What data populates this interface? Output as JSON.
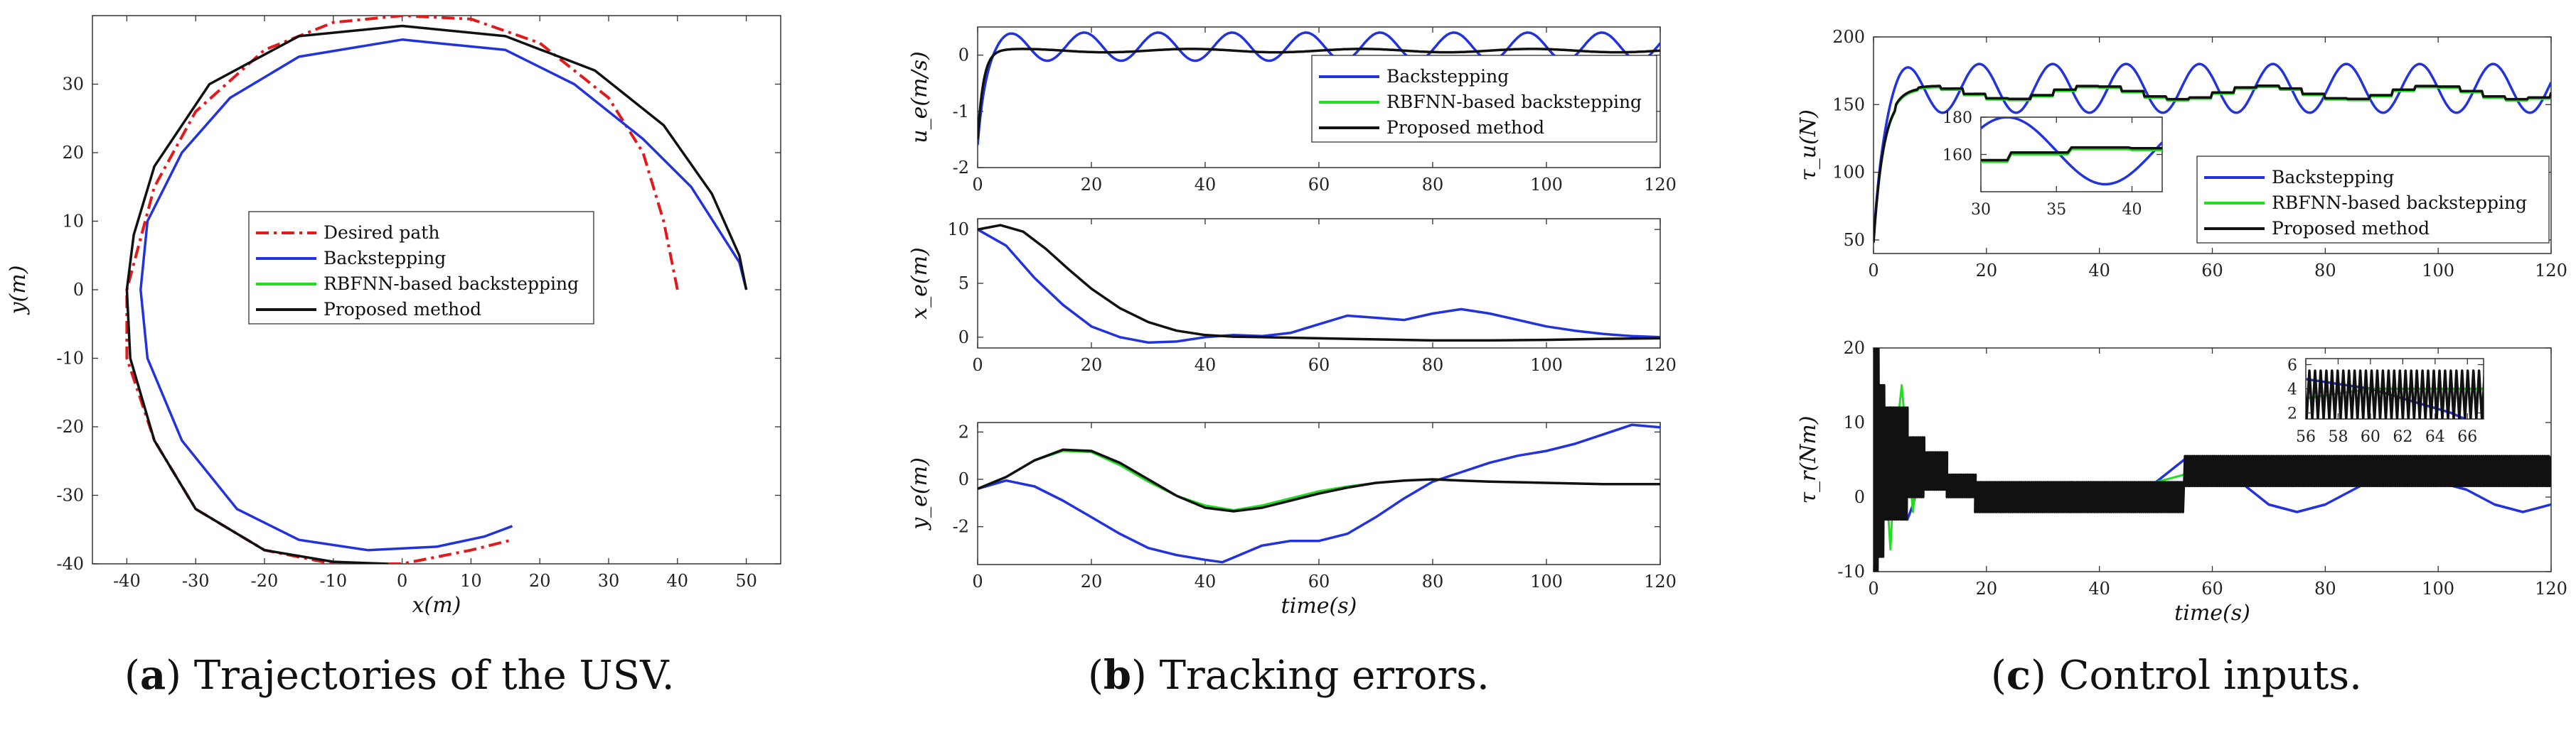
{
  "colors": {
    "desired": "#e31a1c",
    "back": "#2233dd",
    "rbf": "#22dd22",
    "prop": "#111111"
  },
  "captions": [
    {
      "label": "a",
      "text": "Trajectories of the USV."
    },
    {
      "label": "b",
      "text": "Tracking errors."
    },
    {
      "label": "c",
      "text": "Control inputs."
    }
  ],
  "chart_data": [
    {
      "id": "a",
      "type": "line",
      "title": "",
      "xlabel": "x(m)",
      "ylabel": "y(m)",
      "xlim": [
        -45,
        55
      ],
      "ylim": [
        -40,
        40
      ],
      "xticks": [
        -40,
        -30,
        -20,
        -10,
        0,
        10,
        20,
        30,
        40,
        50
      ],
      "yticks": [
        -40,
        -30,
        -20,
        -10,
        0,
        10,
        20,
        30
      ],
      "legend": {
        "position": "center",
        "entries": [
          "Desired path",
          "Backstepping",
          "RBFNN-based backstepping",
          "Proposed method"
        ]
      },
      "series": [
        {
          "name": "Desired path",
          "style": "dashdot",
          "key": "desired",
          "x": [
            40,
            38,
            35,
            30,
            20,
            10,
            0,
            -10,
            -20,
            -30,
            -36,
            -40,
            -40,
            -36,
            -30,
            -20,
            -10,
            0,
            10,
            16
          ],
          "y": [
            0,
            10,
            20,
            28,
            36,
            39.5,
            40,
            39,
            35,
            26,
            15,
            0,
            -10,
            -22,
            -32,
            -38,
            -40,
            -40,
            -38,
            -36.5
          ]
        },
        {
          "name": "Backstepping",
          "style": "solid",
          "key": "back",
          "x": [
            50,
            49,
            42,
            35,
            25,
            15,
            0,
            -15,
            -25,
            -32,
            -37,
            -38,
            -37,
            -32,
            -24,
            -15,
            -5,
            5,
            12,
            16
          ],
          "y": [
            0,
            4,
            15,
            22,
            30,
            35,
            36.5,
            34,
            28,
            20,
            10,
            0,
            -10,
            -22,
            -32,
            -36.5,
            -38,
            -37.5,
            -36,
            -34.5
          ]
        },
        {
          "name": "RBFNN-based backstepping",
          "style": "solid",
          "key": "rbf",
          "x": [
            50,
            49,
            45,
            38,
            28,
            15,
            0,
            -15,
            -28,
            -36,
            -39,
            -40,
            -39.5,
            -36,
            -30,
            -20,
            -10,
            -2
          ],
          "y": [
            0,
            5,
            14,
            24,
            32,
            37,
            38.5,
            37,
            30,
            18,
            8,
            0,
            -10,
            -22,
            -32,
            -38,
            -39.7,
            -40
          ]
        },
        {
          "name": "Proposed method",
          "style": "solid",
          "key": "prop",
          "x": [
            50,
            49,
            45,
            38,
            28,
            15,
            0,
            -15,
            -28,
            -36,
            -39,
            -40,
            -39.5,
            -36,
            -30,
            -20,
            -10,
            -2
          ],
          "y": [
            0,
            5,
            14,
            24,
            32,
            37,
            38.5,
            37,
            30,
            18,
            8,
            0,
            -10,
            -22,
            -32,
            -38,
            -39.7,
            -40
          ]
        }
      ]
    },
    {
      "id": "b1",
      "type": "line",
      "xlabel": "",
      "ylabel": "u_e(m/s)",
      "xlim": [
        0,
        120
      ],
      "ylim": [
        -2,
        0.5
      ],
      "xticks": [
        0,
        20,
        40,
        60,
        80,
        100,
        120
      ],
      "yticks": [
        -2,
        -1,
        0
      ],
      "legend": {
        "position": "right",
        "entries": [
          "Backstepping",
          "RBFNN-based backstepping",
          "Proposed method"
        ]
      },
      "series": [
        {
          "name": "Backstepping",
          "key": "back",
          "gen": "osc",
          "y0": -1.6,
          "tau": 1.2,
          "base": 0.15,
          "amp": 0.25,
          "period": 13
        },
        {
          "name": "RBFNN-based backstepping",
          "key": "rbf",
          "gen": "exp",
          "y0": -1.5,
          "tau": 1.0,
          "base": 0.08,
          "amp": 0.03,
          "period": 30
        },
        {
          "name": "Proposed method",
          "key": "prop",
          "gen": "exp",
          "y0": -1.5,
          "tau": 1.0,
          "base": 0.08,
          "amp": 0.03,
          "period": 30
        }
      ]
    },
    {
      "id": "b2",
      "type": "line",
      "xlabel": "",
      "ylabel": "x_e(m)",
      "xlim": [
        0,
        120
      ],
      "ylim": [
        -1,
        11
      ],
      "xticks": [
        0,
        20,
        40,
        60,
        80,
        100,
        120
      ],
      "yticks": [
        0,
        5,
        10
      ],
      "series": [
        {
          "name": "Backstepping",
          "key": "back",
          "x": [
            0,
            5,
            10,
            15,
            20,
            25,
            30,
            35,
            40,
            45,
            50,
            55,
            60,
            65,
            70,
            75,
            80,
            85,
            90,
            95,
            100,
            105,
            110,
            115,
            120
          ],
          "y": [
            10,
            8.5,
            5.5,
            3,
            1,
            0,
            -0.5,
            -0.4,
            0,
            0.2,
            0.1,
            0.4,
            1.2,
            2,
            1.8,
            1.6,
            2.2,
            2.6,
            2.2,
            1.6,
            1,
            0.6,
            0.3,
            0.1,
            0
          ]
        },
        {
          "name": "RBFNN-based backstepping",
          "key": "rbf",
          "x": [
            0,
            4,
            8,
            12,
            16,
            20,
            25,
            30,
            35,
            40,
            45,
            50,
            60,
            70,
            80,
            90,
            100,
            110,
            120
          ],
          "y": [
            10,
            10.4,
            9.8,
            8.2,
            6.3,
            4.5,
            2.7,
            1.4,
            0.6,
            0.2,
            0.05,
            0,
            -0.1,
            -0.2,
            -0.3,
            -0.3,
            -0.25,
            -0.15,
            -0.1
          ]
        },
        {
          "name": "Proposed method",
          "key": "prop",
          "x": [
            0,
            4,
            8,
            12,
            16,
            20,
            25,
            30,
            35,
            40,
            45,
            50,
            60,
            70,
            80,
            90,
            100,
            110,
            120
          ],
          "y": [
            10,
            10.4,
            9.8,
            8.2,
            6.3,
            4.5,
            2.7,
            1.4,
            0.6,
            0.2,
            0.05,
            0,
            -0.1,
            -0.2,
            -0.3,
            -0.3,
            -0.25,
            -0.15,
            -0.1
          ]
        }
      ]
    },
    {
      "id": "b3",
      "type": "line",
      "xlabel": "time(s)",
      "ylabel": "y_e(m)",
      "xlim": [
        0,
        120
      ],
      "ylim": [
        -3.6,
        2.4
      ],
      "xticks": [
        0,
        20,
        40,
        60,
        80,
        100,
        120
      ],
      "yticks": [
        -2,
        0,
        2
      ],
      "series": [
        {
          "name": "Backstepping",
          "key": "back",
          "x": [
            0,
            5,
            10,
            15,
            20,
            25,
            30,
            35,
            40,
            43,
            46,
            50,
            55,
            60,
            65,
            70,
            75,
            80,
            85,
            90,
            95,
            100,
            105,
            110,
            115,
            120
          ],
          "y": [
            -0.4,
            -0.05,
            -0.3,
            -0.9,
            -1.6,
            -2.3,
            -2.9,
            -3.2,
            -3.4,
            -3.5,
            -3.2,
            -2.8,
            -2.6,
            -2.6,
            -2.3,
            -1.6,
            -0.8,
            -0.1,
            0.3,
            0.7,
            1,
            1.2,
            1.5,
            1.9,
            2.3,
            2.2
          ]
        },
        {
          "name": "RBFNN-based backstepping",
          "key": "rbf",
          "x": [
            0,
            5,
            10,
            15,
            20,
            25,
            30,
            35,
            40,
            45,
            50,
            55,
            60,
            65,
            70,
            75,
            80,
            85,
            90,
            100,
            110,
            120
          ],
          "y": [
            -0.4,
            0.1,
            0.8,
            1.2,
            1.15,
            0.6,
            -0.1,
            -0.7,
            -1.1,
            -1.3,
            -1.1,
            -0.8,
            -0.5,
            -0.3,
            -0.15,
            -0.05,
            0,
            -0.05,
            -0.1,
            -0.15,
            -0.2,
            -0.2
          ]
        },
        {
          "name": "Proposed method",
          "key": "prop",
          "x": [
            0,
            5,
            10,
            15,
            20,
            25,
            30,
            35,
            40,
            45,
            50,
            55,
            60,
            65,
            70,
            75,
            80,
            85,
            90,
            100,
            110,
            120
          ],
          "y": [
            -0.4,
            0.1,
            0.8,
            1.25,
            1.2,
            0.7,
            0,
            -0.7,
            -1.2,
            -1.35,
            -1.2,
            -0.9,
            -0.6,
            -0.35,
            -0.15,
            -0.05,
            0,
            -0.05,
            -0.1,
            -0.15,
            -0.2,
            -0.2
          ]
        }
      ]
    },
    {
      "id": "c1",
      "type": "line",
      "xlabel": "",
      "ylabel": "τ_u(N)",
      "xlim": [
        0,
        120
      ],
      "ylim": [
        40,
        200
      ],
      "xticks": [
        0,
        20,
        40,
        60,
        80,
        100,
        120
      ],
      "yticks": [
        50,
        100,
        150,
        200
      ],
      "legend": {
        "position": "bottom-right",
        "entries": [
          "Backstepping",
          "RBFNN-based backstepping",
          "Proposed method"
        ]
      },
      "inset": {
        "xlim": [
          30,
          42
        ],
        "ylim": [
          140,
          180
        ],
        "xticks": [
          30,
          35,
          40
        ],
        "yticks": [
          160,
          180
        ]
      },
      "series": [
        {
          "name": "Backstepping",
          "key": "back",
          "gen": "osc",
          "y0": 50,
          "tau": 1.5,
          "base": 162,
          "amp": 18,
          "period": 13
        },
        {
          "name": "RBFNN-based backstepping",
          "key": "rbf",
          "gen": "stair",
          "y0": 48,
          "tau": 1.8,
          "base": 158,
          "amp": 5,
          "period": 30
        },
        {
          "name": "Proposed method",
          "key": "prop",
          "gen": "stair",
          "y0": 48,
          "tau": 1.8,
          "base": 159,
          "amp": 5,
          "period": 30
        }
      ]
    },
    {
      "id": "c2",
      "type": "line",
      "xlabel": "time(s)",
      "ylabel": "τ_r(Nm)",
      "xlim": [
        0,
        120
      ],
      "ylim": [
        -10,
        20
      ],
      "xticks": [
        0,
        20,
        40,
        60,
        80,
        100,
        120
      ],
      "yticks": [
        -10,
        0,
        10,
        20
      ],
      "inset": {
        "xlim": [
          56,
          67
        ],
        "ylim": [
          1.5,
          6.5
        ],
        "xticks": [
          56,
          58,
          60,
          62,
          64,
          66
        ],
        "yticks": [
          2,
          4,
          6
        ]
      },
      "series": [
        {
          "name": "Backstepping",
          "key": "back",
          "x": [
            0,
            1,
            2,
            3,
            4,
            5,
            6,
            7,
            8,
            10,
            12,
            15,
            18,
            20,
            25,
            30,
            35,
            40,
            45,
            50,
            55,
            60,
            65,
            70,
            75,
            80,
            85,
            90,
            95,
            100,
            105,
            110,
            115,
            120
          ],
          "y": [
            -10,
            5,
            11,
            12,
            8,
            0,
            -3,
            -1,
            2,
            3,
            2,
            1,
            0,
            -1,
            -1,
            0,
            2,
            1,
            -1,
            2,
            5,
            4,
            2,
            -1,
            -2,
            -1,
            1,
            3,
            3,
            2,
            1,
            -1,
            -2,
            -1
          ]
        },
        {
          "name": "RBFNN-based backstepping",
          "key": "rbf",
          "x": [
            0,
            2,
            3,
            4,
            5,
            6,
            7,
            8,
            9,
            10,
            12,
            14,
            16,
            18,
            20,
            25,
            30,
            40,
            50,
            55,
            60,
            70,
            80,
            90,
            100,
            110,
            120
          ],
          "y": [
            -10,
            5,
            -7,
            8,
            15,
            6,
            -2,
            8,
            4,
            3,
            2,
            1.5,
            1,
            0.5,
            0,
            0,
            0.5,
            1,
            2,
            3,
            4,
            4,
            4,
            4,
            4,
            4,
            4
          ]
        },
        {
          "name": "Proposed method",
          "key": "prop",
          "gen": "chatter",
          "blocks": [
            [
              0,
              1,
              -10,
              20
            ],
            [
              1,
              2,
              -8,
              15
            ],
            [
              2,
              6,
              -3,
              12
            ],
            [
              6,
              9,
              0,
              8
            ],
            [
              9,
              13,
              1,
              6
            ],
            [
              13,
              18,
              0,
              3
            ],
            [
              18,
              38,
              -2,
              2
            ],
            [
              38,
              55,
              -2,
              2
            ],
            [
              55,
              120,
              1.5,
              5.5
            ]
          ]
        }
      ]
    }
  ]
}
